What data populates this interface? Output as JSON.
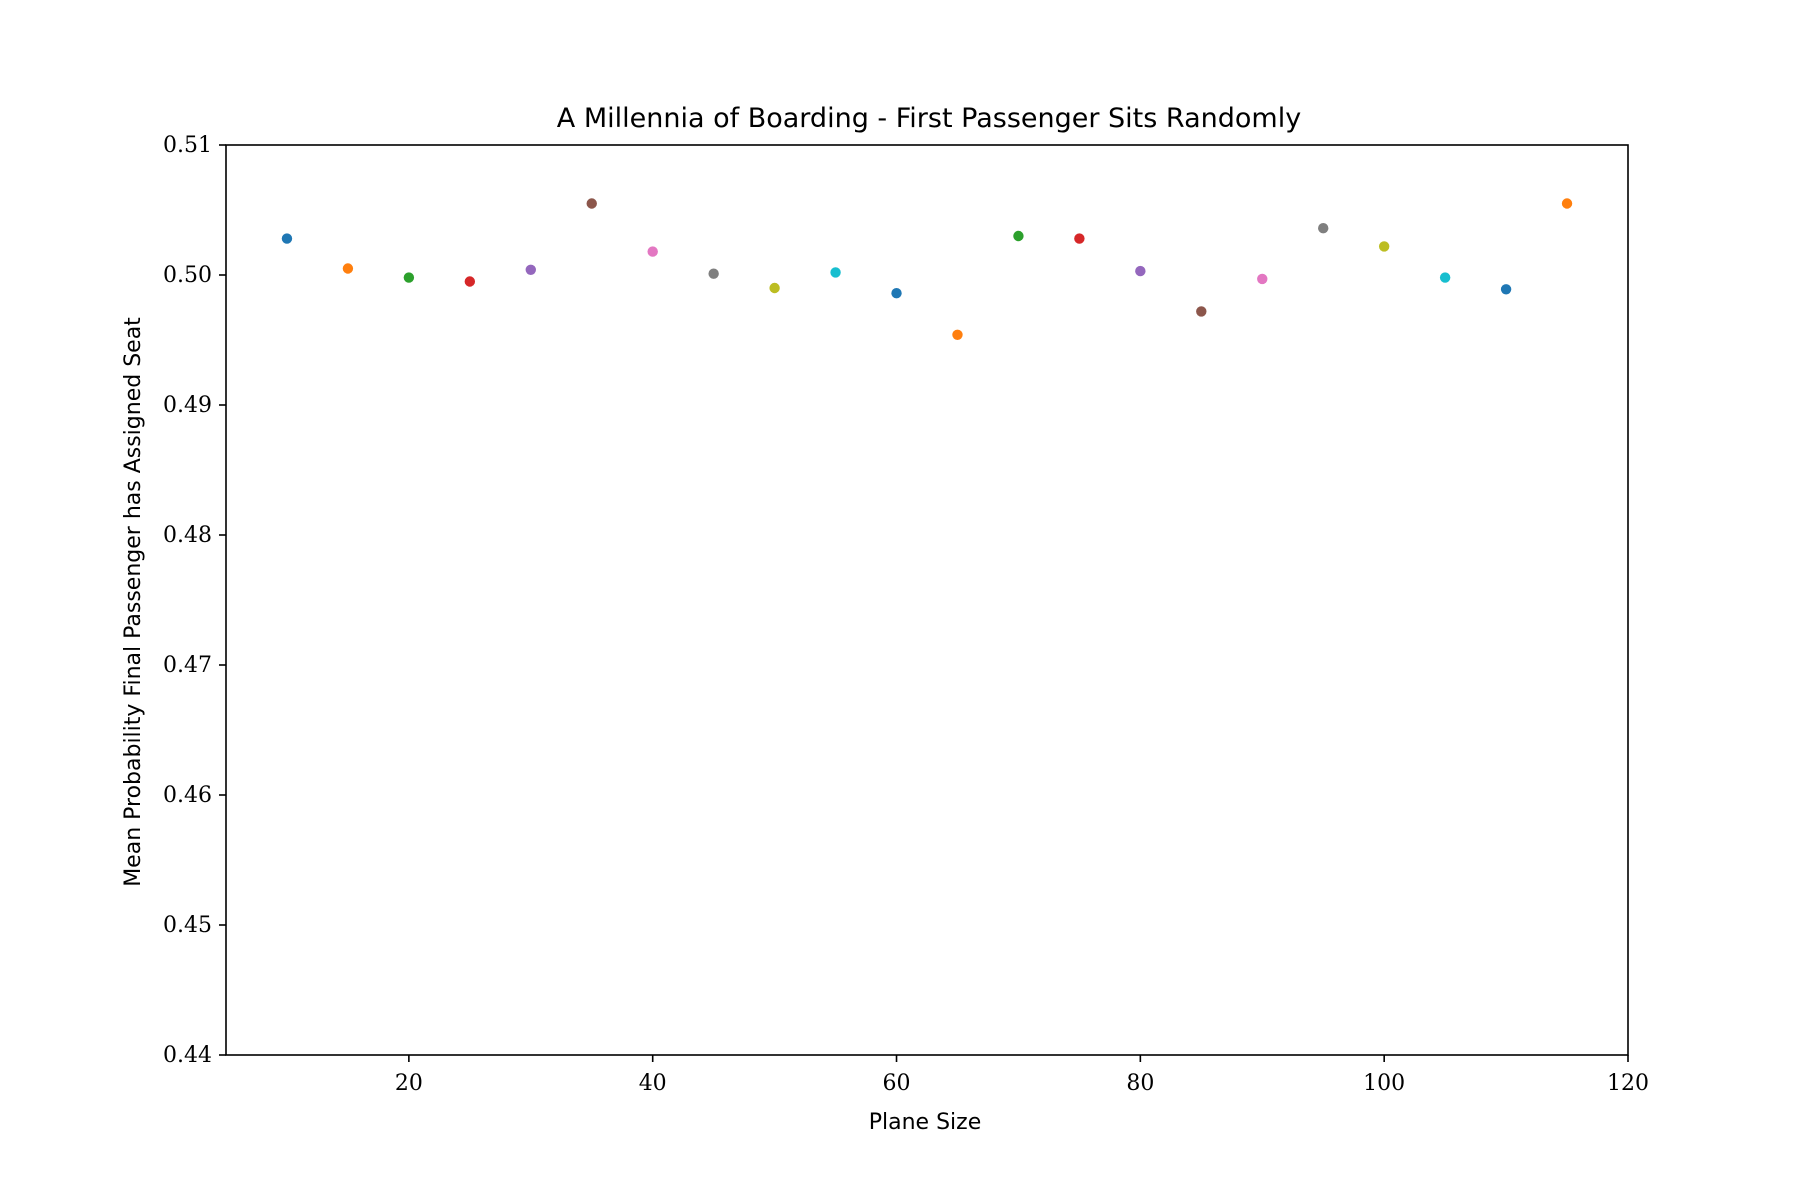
{
  "chart_data": {
    "type": "scatter",
    "title": "A Millennia of Boarding - First Passenger Sits Randomly",
    "xlabel": "Plane Size",
    "ylabel": "Mean Probability Final Passenger has Assigned Seat",
    "xlim": [
      5,
      120
    ],
    "ylim": [
      0.44,
      0.51
    ],
    "xticks": [
      20,
      40,
      60,
      80,
      100,
      120
    ],
    "xtick_labels": [
      "20",
      "40",
      "60",
      "80",
      "100",
      "120"
    ],
    "yticks": [
      0.44,
      0.45,
      0.46,
      0.47,
      0.48,
      0.49,
      0.5,
      0.51
    ],
    "ytick_labels": [
      "0.44",
      "0.45",
      "0.46",
      "0.47",
      "0.48",
      "0.49",
      "0.50",
      "0.51"
    ],
    "grid": false,
    "points": [
      {
        "x": 10,
        "y": 0.5028,
        "color": "#1f77b4"
      },
      {
        "x": 15,
        "y": 0.5005,
        "color": "#ff7f0e"
      },
      {
        "x": 20,
        "y": 0.4998,
        "color": "#2ca02c"
      },
      {
        "x": 25,
        "y": 0.4995,
        "color": "#d62728"
      },
      {
        "x": 30,
        "y": 0.5004,
        "color": "#9467bd"
      },
      {
        "x": 35,
        "y": 0.5055,
        "color": "#8c564b"
      },
      {
        "x": 40,
        "y": 0.5018,
        "color": "#e377c2"
      },
      {
        "x": 45,
        "y": 0.5001,
        "color": "#7f7f7f"
      },
      {
        "x": 50,
        "y": 0.499,
        "color": "#bcbd22"
      },
      {
        "x": 55,
        "y": 0.5002,
        "color": "#17becf"
      },
      {
        "x": 60,
        "y": 0.4986,
        "color": "#1f77b4"
      },
      {
        "x": 65,
        "y": 0.4954,
        "color": "#ff7f0e"
      },
      {
        "x": 70,
        "y": 0.503,
        "color": "#2ca02c"
      },
      {
        "x": 75,
        "y": 0.5028,
        "color": "#d62728"
      },
      {
        "x": 80,
        "y": 0.5003,
        "color": "#9467bd"
      },
      {
        "x": 85,
        "y": 0.4972,
        "color": "#8c564b"
      },
      {
        "x": 90,
        "y": 0.4997,
        "color": "#e377c2"
      },
      {
        "x": 95,
        "y": 0.5036,
        "color": "#7f7f7f"
      },
      {
        "x": 100,
        "y": 0.5022,
        "color": "#bcbd22"
      },
      {
        "x": 105,
        "y": 0.4998,
        "color": "#17becf"
      },
      {
        "x": 110,
        "y": 0.4989,
        "color": "#1f77b4"
      },
      {
        "x": 115,
        "y": 0.5055,
        "color": "#ff7f0e"
      }
    ]
  }
}
